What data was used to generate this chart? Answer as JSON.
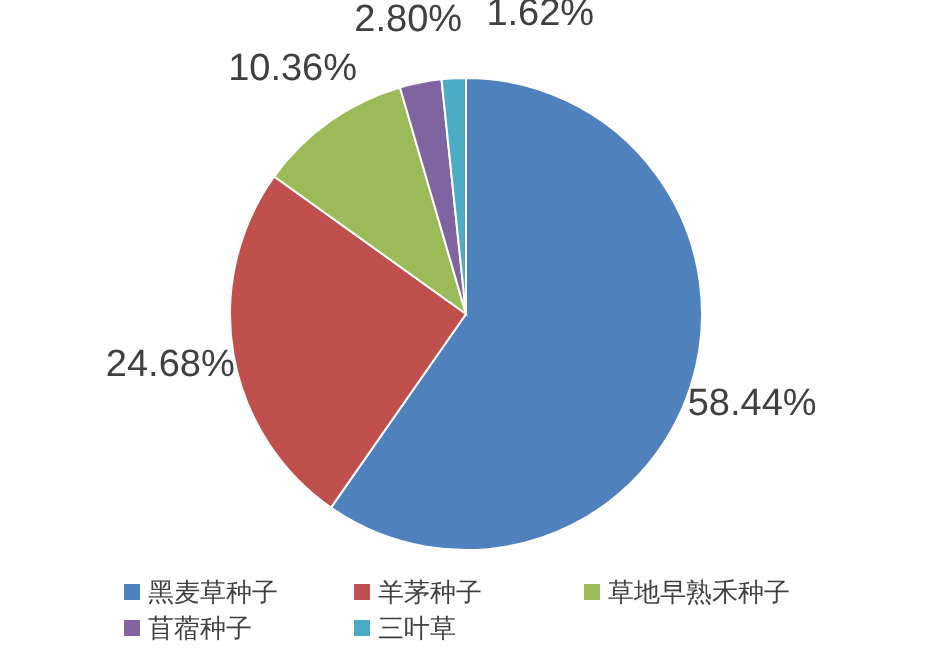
{
  "chart_data": {
    "type": "pie",
    "categories": [
      "黑麦草种子",
      "羊茅种子",
      "草地早熟禾种子",
      "苜蓿种子",
      "三叶草"
    ],
    "values": [
      58.44,
      24.68,
      10.36,
      2.8,
      1.62
    ],
    "value_labels": [
      "58.44%",
      "24.68%",
      "10.36%",
      "2.80%",
      "1.62%"
    ],
    "colors": [
      "#4f81bd",
      "#c0504d",
      "#9bbb59",
      "#8064a2",
      "#4bacc6"
    ],
    "legend": "bottom"
  }
}
